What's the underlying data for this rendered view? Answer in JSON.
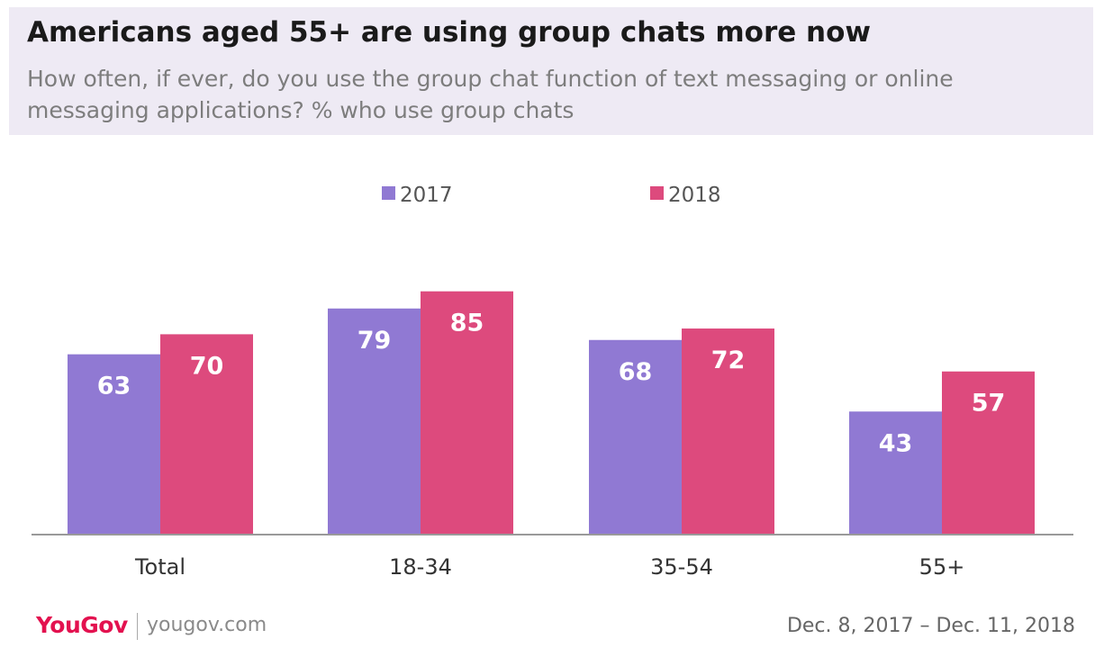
{
  "header": {
    "title": "Americans aged 55+ are using group chats more now",
    "subtitle": "How often, if ever, do you use the group chat function of text messaging or online messaging applications? % who use group chats"
  },
  "chart_data": {
    "type": "bar",
    "categories": [
      "Total",
      "18-34",
      "35-54",
      "55+"
    ],
    "series": [
      {
        "name": "2017",
        "values": [
          63,
          79,
          68,
          43
        ],
        "color": "#9079d3"
      },
      {
        "name": "2018",
        "values": [
          70,
          85,
          72,
          57
        ],
        "color": "#dd4a7d"
      }
    ],
    "title": "Americans aged 55+ are using group chats more now",
    "subtitle": "How often, if ever, do you use the group chat function of text messaging or online messaging applications? % who use group chats",
    "xlabel": "",
    "ylabel": "",
    "ylim": [
      0,
      100
    ],
    "grid": false,
    "legend": "top-center",
    "data_labels": "inside-top"
  },
  "footer": {
    "brand": "YouGov",
    "site": "yougov.com",
    "date_range": "Dec. 8, 2017 – Dec. 11, 2018"
  },
  "colors": {
    "header_bg": "#eeeaf4",
    "brand": "#e3114f"
  }
}
